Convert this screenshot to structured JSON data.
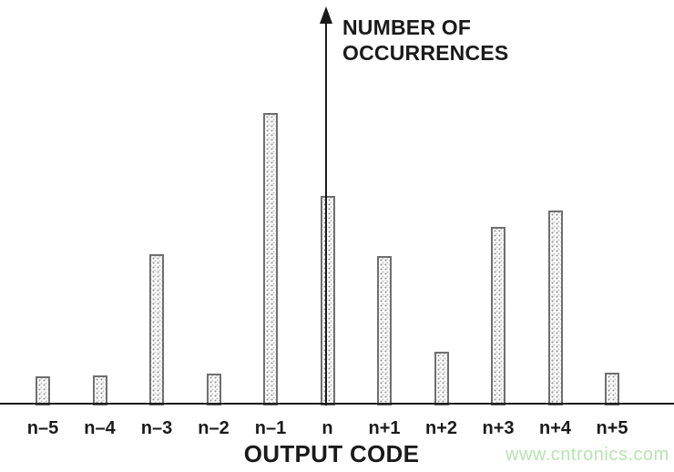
{
  "figure": {
    "y_axis_title_line1": "NUMBER OF",
    "y_axis_title_line2": "OCCURRENCES",
    "x_axis_title": "OUTPUT CODE"
  },
  "watermark": {
    "text": "www.cntronics.com",
    "color": "#b8e3b2"
  },
  "colors": {
    "axis": "#1a1a1a",
    "text": "#1a1a1a",
    "bar_outline": "#6f6f6f",
    "bar_fill_base": "#ffffff",
    "bar_fill_dots": "#8f8f8f"
  },
  "chart_data": {
    "type": "bar",
    "title": "",
    "xlabel": "OUTPUT CODE",
    "ylabel": "NUMBER OF OCCURRENCES",
    "categories": [
      "n–5",
      "n–4",
      "n–3",
      "n–2",
      "n–1",
      "n",
      "n+1",
      "n+2",
      "n+3",
      "n+4",
      "n+5"
    ],
    "values": [
      26,
      27,
      160,
      29,
      315,
      224,
      158,
      53,
      190,
      208,
      30
    ],
    "value_scale": "relative bar heights in pixels; no numeric tick labels shown on y-axis",
    "ylim": null,
    "grid": false,
    "legend": false,
    "bar_fill_style": "stippled dot pattern with gray outline",
    "y_axis_style": "vertical arrow through the n bar",
    "x_axis_style": "full-width baseline, category labels below each bar"
  }
}
